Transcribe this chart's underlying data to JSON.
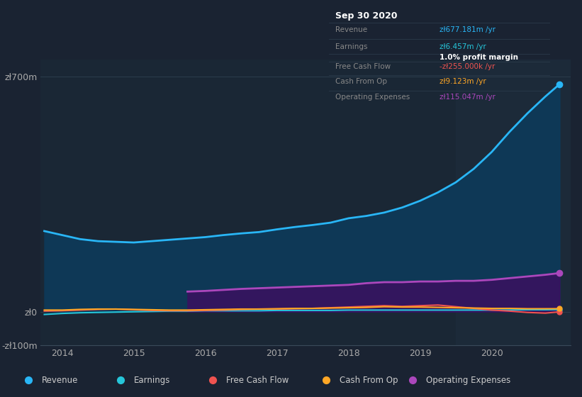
{
  "bg_color": "#1a2332",
  "plot_bg_color": "#1a2735",
  "grid_color": "#2a3a4a",
  "ylim": [
    -100,
    750
  ],
  "yticks": [
    -100,
    0,
    700
  ],
  "ytick_labels": [
    "-zł100m",
    "zł0",
    "zł700m"
  ],
  "xlim": [
    2013.7,
    2021.1
  ],
  "xticks": [
    2014,
    2015,
    2016,
    2017,
    2018,
    2019,
    2020
  ],
  "revenue_color": "#29b6f6",
  "revenue_fill": "#0d3a5a",
  "earnings_color": "#26c6da",
  "fcf_color": "#ef5350",
  "cashfromop_color": "#ffa726",
  "opex_color": "#ab47bc",
  "opex_fill": "#3a1060",
  "highlight_x_start": 2019.5,
  "highlight_color": "#1e2d3d",
  "revenue_x": [
    2013.75,
    2014.0,
    2014.25,
    2014.5,
    2014.75,
    2015.0,
    2015.25,
    2015.5,
    2015.75,
    2016.0,
    2016.25,
    2016.5,
    2016.75,
    2017.0,
    2017.25,
    2017.5,
    2017.75,
    2018.0,
    2018.25,
    2018.5,
    2018.75,
    2019.0,
    2019.25,
    2019.5,
    2019.75,
    2020.0,
    2020.25,
    2020.5,
    2020.75,
    2020.95
  ],
  "revenue_y": [
    240,
    228,
    216,
    210,
    208,
    206,
    210,
    214,
    218,
    222,
    228,
    233,
    237,
    245,
    252,
    258,
    265,
    278,
    285,
    295,
    310,
    330,
    355,
    385,
    425,
    475,
    535,
    590,
    640,
    677
  ],
  "earnings_x": [
    2013.75,
    2014.0,
    2014.25,
    2014.5,
    2014.75,
    2015.0,
    2015.25,
    2015.5,
    2015.75,
    2016.0,
    2016.25,
    2016.5,
    2016.75,
    2017.0,
    2017.25,
    2017.5,
    2017.75,
    2018.0,
    2018.25,
    2018.5,
    2018.75,
    2019.0,
    2019.25,
    2019.5,
    2019.75,
    2020.0,
    2020.25,
    2020.5,
    2020.75,
    2020.95
  ],
  "earnings_y": [
    -8,
    -5,
    -3,
    -2,
    -1,
    0,
    1,
    2,
    2,
    3,
    3,
    3,
    3,
    4,
    4,
    4,
    4,
    5,
    5,
    5,
    5,
    5,
    5,
    5,
    5,
    5,
    5,
    6,
    6,
    6.5
  ],
  "fcf_x": [
    2013.75,
    2014.0,
    2014.25,
    2014.5,
    2014.75,
    2015.0,
    2015.25,
    2015.5,
    2015.75,
    2016.0,
    2016.25,
    2016.5,
    2016.75,
    2017.0,
    2017.25,
    2017.5,
    2017.75,
    2018.0,
    2018.25,
    2018.5,
    2018.75,
    2019.0,
    2019.25,
    2019.5,
    2019.75,
    2020.0,
    2020.25,
    2020.5,
    2020.75,
    2020.95
  ],
  "fcf_y": [
    2,
    3,
    5,
    7,
    8,
    6,
    4,
    3,
    3,
    4,
    5,
    7,
    8,
    8,
    9,
    10,
    12,
    14,
    16,
    18,
    16,
    18,
    20,
    15,
    10,
    5,
    2,
    -2,
    -4,
    -0.255
  ],
  "cashfromop_x": [
    2013.75,
    2014.0,
    2014.25,
    2014.5,
    2014.75,
    2015.0,
    2015.25,
    2015.5,
    2015.75,
    2016.0,
    2016.25,
    2016.5,
    2016.75,
    2017.0,
    2017.25,
    2017.5,
    2017.75,
    2018.0,
    2018.25,
    2018.5,
    2018.75,
    2019.0,
    2019.25,
    2019.5,
    2019.75,
    2020.0,
    2020.25,
    2020.5,
    2020.75,
    2020.95
  ],
  "cashfromop_y": [
    5,
    5,
    7,
    8,
    8,
    7,
    6,
    5,
    5,
    6,
    7,
    8,
    8,
    9,
    10,
    10,
    11,
    12,
    13,
    15,
    14,
    14,
    13,
    12,
    11,
    10,
    10,
    9,
    9,
    9.1
  ],
  "opex_x": [
    2015.75,
    2016.0,
    2016.25,
    2016.5,
    2016.75,
    2017.0,
    2017.25,
    2017.5,
    2017.75,
    2018.0,
    2018.25,
    2018.5,
    2018.75,
    2019.0,
    2019.25,
    2019.5,
    2019.75,
    2020.0,
    2020.25,
    2020.5,
    2020.75,
    2020.95
  ],
  "opex_y": [
    60,
    62,
    65,
    68,
    70,
    72,
    74,
    76,
    78,
    80,
    85,
    88,
    88,
    90,
    90,
    92,
    92,
    95,
    100,
    105,
    110,
    115
  ],
  "legend": [
    {
      "label": "Revenue",
      "color": "#29b6f6"
    },
    {
      "label": "Earnings",
      "color": "#26c6da"
    },
    {
      "label": "Free Cash Flow",
      "color": "#ef5350"
    },
    {
      "label": "Cash From Op",
      "color": "#ffa726"
    },
    {
      "label": "Operating Expenses",
      "color": "#ab47bc"
    }
  ],
  "tooltip_date": "Sep 30 2020",
  "tooltip_rows": [
    {
      "label": "Revenue",
      "value": "zł677.181m /yr",
      "value_color": "#29b6f6",
      "bold": false
    },
    {
      "label": "Earnings",
      "value": "zł6.457m /yr",
      "value_color": "#26c6da",
      "bold": false
    },
    {
      "label": "",
      "value": "1.0% profit margin",
      "value_color": "#ffffff",
      "bold": true
    },
    {
      "label": "Free Cash Flow",
      "value": "-zł255.000k /yr",
      "value_color": "#ef5350",
      "bold": false
    },
    {
      "label": "Cash From Op",
      "value": "zł9.123m /yr",
      "value_color": "#ffa726",
      "bold": false
    },
    {
      "label": "Operating Expenses",
      "value": "zł115.047m /yr",
      "value_color": "#ab47bc",
      "bold": false
    }
  ]
}
